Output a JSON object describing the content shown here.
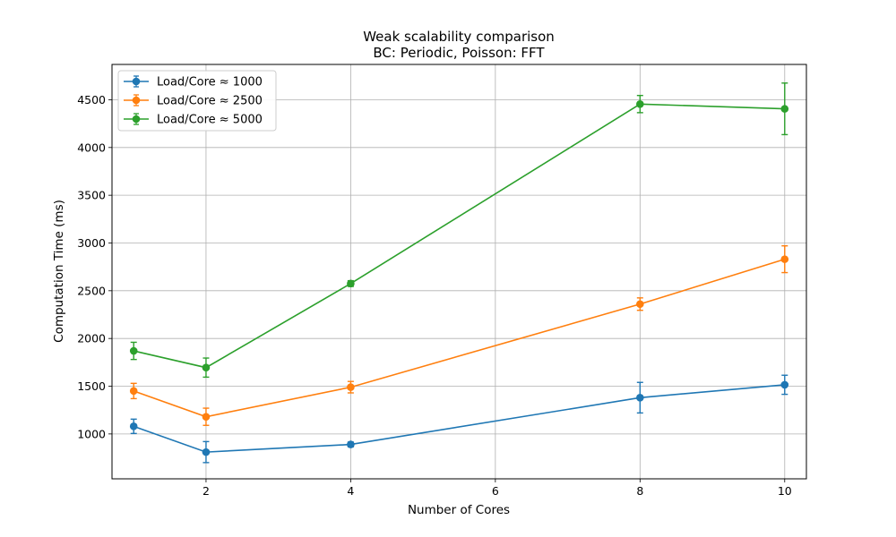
{
  "chart_data": {
    "type": "line",
    "title": "Weak scalability comparison",
    "subtitle": "BC: Periodic, Poisson: FFT",
    "xlabel": "Number of Cores",
    "ylabel": "Computation Time (ms)",
    "x": [
      1,
      2,
      4,
      8,
      10
    ],
    "xlim": [
      0.7,
      10.3
    ],
    "ylim": [
      530,
      4870
    ],
    "xticks": [
      2,
      4,
      6,
      8,
      10
    ],
    "yticks": [
      1000,
      1500,
      2000,
      2500,
      3000,
      3500,
      4000,
      4500
    ],
    "grid": true,
    "legend_position": "top-left",
    "series": [
      {
        "name": "Load/Core ≈ 1000",
        "color": "#1f77b4",
        "values": [
          1080,
          810,
          890,
          1380,
          1515
        ],
        "errors": [
          75,
          110,
          25,
          160,
          100
        ]
      },
      {
        "name": "Load/Core ≈ 2500",
        "color": "#ff7f0e",
        "values": [
          1450,
          1180,
          1490,
          2360,
          2830
        ],
        "errors": [
          80,
          90,
          60,
          65,
          140
        ]
      },
      {
        "name": "Load/Core ≈ 5000",
        "color": "#2ca02c",
        "values": [
          1870,
          1695,
          2575,
          4455,
          4405
        ],
        "errors": [
          90,
          100,
          30,
          90,
          270
        ]
      }
    ]
  }
}
